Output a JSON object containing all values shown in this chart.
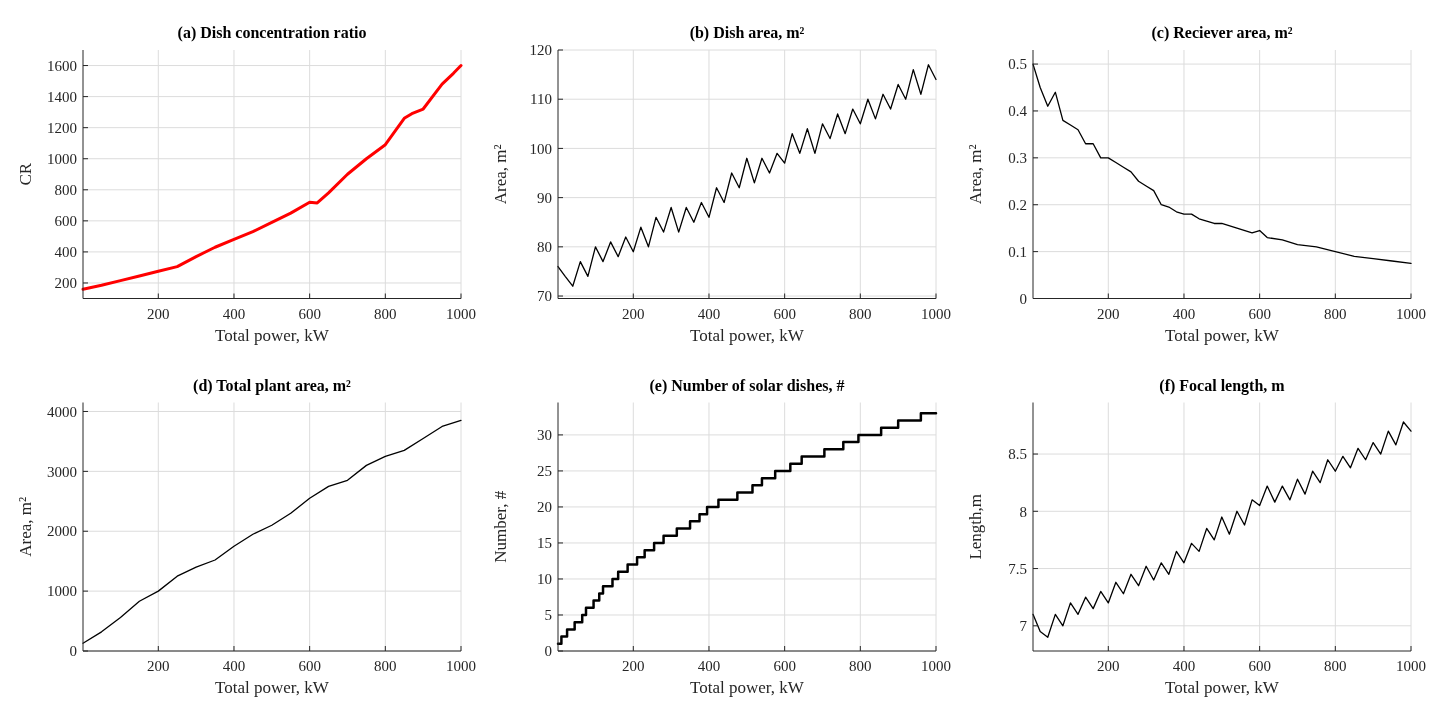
{
  "chart_data": [
    {
      "type": "line",
      "title": "(a) Dish concentration ratio",
      "xlabel": "Total power, kW",
      "ylabel": "CR",
      "xlim": [
        1,
        1000
      ],
      "xticks": [
        200,
        400,
        600,
        800,
        1000
      ],
      "ylim": [
        100,
        1700
      ],
      "yticks": [
        200,
        400,
        600,
        800,
        1000,
        1200,
        1400,
        1600
      ],
      "grid": true,
      "x": [
        1,
        50,
        100,
        150,
        200,
        250,
        300,
        350,
        400,
        450,
        500,
        550,
        600,
        620,
        650,
        700,
        750,
        800,
        850,
        870,
        900,
        950,
        980,
        1000
      ],
      "series": [
        {
          "color": "#ff0000",
          "values": [
            160,
            185,
            215,
            245,
            275,
            305,
            370,
            430,
            480,
            530,
            590,
            650,
            720,
            715,
            780,
            900,
            1000,
            1090,
            1260,
            1290,
            1320,
            1480,
            1550,
            1600
          ]
        }
      ]
    },
    {
      "type": "line",
      "title": "(b) Dish area, m²",
      "xlabel": "Total power, kW",
      "ylabel": "Area, m²",
      "xlim": [
        1,
        1000
      ],
      "xticks": [
        200,
        400,
        600,
        800,
        1000
      ],
      "ylim": [
        69.5,
        120
      ],
      "yticks": [
        70,
        80,
        90,
        100,
        110,
        120
      ],
      "grid": true,
      "x": [
        1,
        20,
        40,
        60,
        80,
        100,
        120,
        140,
        160,
        180,
        200,
        220,
        240,
        260,
        280,
        300,
        320,
        340,
        360,
        380,
        400,
        420,
        440,
        460,
        480,
        500,
        520,
        540,
        560,
        580,
        600,
        620,
        640,
        660,
        680,
        700,
        720,
        740,
        760,
        780,
        800,
        820,
        840,
        860,
        880,
        900,
        920,
        940,
        960,
        980,
        1000
      ],
      "series": [
        {
          "color": "#000000",
          "values": [
            76,
            74,
            72,
            77,
            74,
            80,
            77,
            81,
            78,
            82,
            79,
            84,
            80,
            86,
            83,
            88,
            83,
            88,
            85,
            89,
            86,
            92,
            89,
            95,
            92,
            98,
            93,
            98,
            95,
            99,
            97,
            103,
            99,
            104,
            99,
            105,
            102,
            107,
            103,
            108,
            105,
            110,
            106,
            111,
            108,
            113,
            110,
            116,
            111,
            117,
            114
          ]
        }
      ]
    },
    {
      "type": "line",
      "title": "(c) Reciever area, m²",
      "xlabel": "Total power, kW",
      "ylabel": "Area, m²",
      "xlim": [
        1,
        1000
      ],
      "xticks": [
        200,
        400,
        600,
        800,
        1000
      ],
      "ylim": [
        0,
        0.53
      ],
      "yticks": [
        0,
        0.1,
        0.2,
        0.3,
        0.4,
        0.5
      ],
      "grid": true,
      "x": [
        1,
        20,
        40,
        60,
        80,
        100,
        120,
        140,
        160,
        180,
        200,
        220,
        240,
        260,
        280,
        300,
        320,
        340,
        360,
        380,
        400,
        420,
        440,
        460,
        480,
        500,
        540,
        580,
        600,
        620,
        660,
        700,
        750,
        800,
        850,
        900,
        950,
        1000
      ],
      "series": [
        {
          "color": "#000000",
          "values": [
            0.5,
            0.45,
            0.41,
            0.44,
            0.38,
            0.37,
            0.36,
            0.33,
            0.33,
            0.3,
            0.3,
            0.29,
            0.28,
            0.27,
            0.25,
            0.24,
            0.23,
            0.2,
            0.195,
            0.185,
            0.18,
            0.18,
            0.17,
            0.165,
            0.16,
            0.16,
            0.15,
            0.14,
            0.145,
            0.13,
            0.125,
            0.115,
            0.11,
            0.1,
            0.09,
            0.085,
            0.08,
            0.075
          ]
        }
      ]
    },
    {
      "type": "line",
      "title": "(d) Total plant area, m²",
      "xlabel": "Total power, kW",
      "ylabel": "Area, m²",
      "xlim": [
        1,
        1000
      ],
      "xticks": [
        200,
        400,
        600,
        800,
        1000
      ],
      "ylim": [
        0,
        4150
      ],
      "yticks": [
        0,
        1000,
        2000,
        3000,
        4000
      ],
      "grid": true,
      "x": [
        1,
        50,
        100,
        150,
        200,
        250,
        300,
        350,
        400,
        450,
        500,
        550,
        600,
        650,
        700,
        750,
        800,
        850,
        900,
        950,
        1000
      ],
      "series": [
        {
          "color": "#000000",
          "values": [
            130,
            320,
            560,
            830,
            1000,
            1250,
            1400,
            1520,
            1750,
            1950,
            2100,
            2300,
            2550,
            2750,
            2850,
            3100,
            3250,
            3350,
            3550,
            3750,
            3850
          ]
        }
      ]
    },
    {
      "type": "step",
      "title": "(e) Number of solar dishes, #",
      "xlabel": "Total power, kW",
      "ylabel": "Number, #",
      "xlim": [
        1,
        1000
      ],
      "xticks": [
        200,
        400,
        600,
        800,
        1000
      ],
      "ylim": [
        0,
        34.5
      ],
      "yticks": [
        0,
        5,
        10,
        15,
        20,
        25,
        30
      ],
      "grid": true,
      "x": [
        1,
        10,
        25,
        45,
        65,
        75,
        95,
        110,
        120,
        145,
        160,
        185,
        210,
        230,
        255,
        280,
        315,
        350,
        375,
        395,
        425,
        475,
        515,
        540,
        575,
        615,
        645,
        705,
        755,
        795,
        855,
        900,
        960,
        1000
      ],
      "series": [
        {
          "color": "#000000",
          "values": [
            1,
            2,
            3,
            4,
            5,
            6,
            7,
            8,
            9,
            10,
            11,
            12,
            13,
            14,
            15,
            16,
            17,
            18,
            19,
            20,
            21,
            22,
            23,
            24,
            25,
            26,
            27,
            28,
            29,
            30,
            31,
            32,
            33,
            33
          ]
        }
      ]
    },
    {
      "type": "line",
      "title": "(f) Focal length, m",
      "xlabel": "Total power, kW",
      "ylabel": "Length,m",
      "xlim": [
        1,
        1000
      ],
      "xticks": [
        200,
        400,
        600,
        800,
        1000
      ],
      "ylim": [
        6.78,
        8.95
      ],
      "yticks": [
        7,
        7.5,
        8,
        8.5
      ],
      "grid": true,
      "x": [
        1,
        20,
        40,
        60,
        80,
        100,
        120,
        140,
        160,
        180,
        200,
        220,
        240,
        260,
        280,
        300,
        320,
        340,
        360,
        380,
        400,
        420,
        440,
        460,
        480,
        500,
        520,
        540,
        560,
        580,
        600,
        620,
        640,
        660,
        680,
        700,
        720,
        740,
        760,
        780,
        800,
        820,
        840,
        860,
        880,
        900,
        920,
        940,
        960,
        980,
        1000
      ],
      "series": [
        {
          "color": "#000000",
          "values": [
            7.1,
            6.95,
            6.9,
            7.1,
            7.0,
            7.2,
            7.1,
            7.25,
            7.15,
            7.3,
            7.2,
            7.38,
            7.28,
            7.45,
            7.35,
            7.52,
            7.4,
            7.55,
            7.45,
            7.65,
            7.55,
            7.72,
            7.65,
            7.85,
            7.75,
            7.95,
            7.8,
            8.0,
            7.88,
            8.1,
            8.05,
            8.22,
            8.08,
            8.22,
            8.1,
            8.28,
            8.15,
            8.35,
            8.25,
            8.45,
            8.35,
            8.48,
            8.38,
            8.55,
            8.45,
            8.6,
            8.5,
            8.7,
            8.58,
            8.78,
            8.7
          ]
        }
      ]
    }
  ]
}
